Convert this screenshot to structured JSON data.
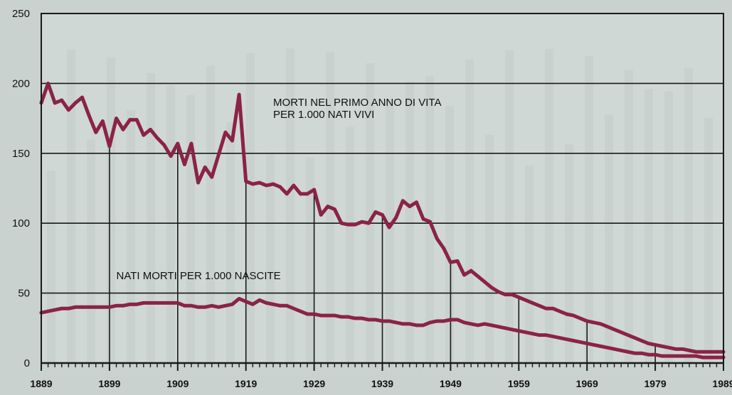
{
  "chart_data": {
    "type": "line",
    "title": "",
    "xlabel": "",
    "ylabel": "",
    "xlim": [
      1889,
      1989
    ],
    "ylim": [
      0,
      250
    ],
    "x_ticks": [
      1889,
      1899,
      1909,
      1919,
      1929,
      1939,
      1949,
      1959,
      1969,
      1979,
      1989
    ],
    "y_ticks": [
      0,
      50,
      100,
      150,
      200,
      250
    ],
    "grid": "horizontal",
    "colors": {
      "line": "#8b2346",
      "grid": "#1a1a1a",
      "background": "#c9d2cf",
      "plot_background": "#cfd8d5",
      "text": "#111111"
    },
    "annotations": [
      {
        "lines": [
          "MORTI NEL PRIMO ANNO DI VITA",
          "PER 1.000 NATI VIVI"
        ],
        "x": 1923,
        "y": 184,
        "series": 0
      },
      {
        "lines": [
          "NATI MORTI PER 1.000 NASCITE"
        ],
        "x": 1900,
        "y": 60,
        "series": 1
      }
    ],
    "series": [
      {
        "name": "MORTI NEL PRIMO ANNO DI VITA PER 1.000 NATI VIVI",
        "x": [
          1889,
          1890,
          1891,
          1892,
          1893,
          1894,
          1895,
          1896,
          1897,
          1898,
          1899,
          1900,
          1901,
          1902,
          1903,
          1904,
          1905,
          1906,
          1907,
          1908,
          1909,
          1910,
          1911,
          1912,
          1913,
          1914,
          1915,
          1916,
          1917,
          1918,
          1919,
          1920,
          1921,
          1922,
          1923,
          1924,
          1925,
          1926,
          1927,
          1928,
          1929,
          1930,
          1931,
          1932,
          1933,
          1934,
          1935,
          1936,
          1937,
          1938,
          1939,
          1940,
          1941,
          1942,
          1943,
          1944,
          1945,
          1946,
          1947,
          1948,
          1949,
          1950,
          1951,
          1952,
          1953,
          1954,
          1955,
          1956,
          1957,
          1958,
          1959,
          1960,
          1961,
          1962,
          1963,
          1964,
          1965,
          1966,
          1967,
          1968,
          1969,
          1970,
          1971,
          1972,
          1973,
          1974,
          1975,
          1976,
          1977,
          1978,
          1979,
          1980,
          1981,
          1982,
          1983,
          1984,
          1985,
          1986,
          1987,
          1988,
          1989
        ],
        "values": [
          186,
          200,
          186,
          188,
          181,
          186,
          190,
          177,
          165,
          173,
          155,
          175,
          167,
          174,
          174,
          163,
          167,
          161,
          156,
          148,
          157,
          142,
          157,
          129,
          140,
          133,
          149,
          165,
          159,
          192,
          130,
          128,
          129,
          127,
          128,
          126,
          121,
          127,
          121,
          121,
          124,
          106,
          112,
          110,
          100,
          99,
          99,
          101,
          100,
          108,
          106,
          97,
          104,
          116,
          112,
          115,
          103,
          101,
          89,
          82,
          72,
          73,
          63,
          66,
          62,
          58,
          54,
          51,
          49,
          49,
          47,
          45,
          43,
          41,
          39,
          39,
          37,
          35,
          34,
          32,
          30,
          29,
          28,
          26,
          24,
          22,
          20,
          18,
          16,
          14,
          13,
          12,
          11,
          10,
          10,
          9,
          8,
          8,
          8,
          8,
          8
        ]
      },
      {
        "name": "NATI MORTI PER 1.000 NASCITE",
        "x": [
          1889,
          1890,
          1891,
          1892,
          1893,
          1894,
          1895,
          1896,
          1897,
          1898,
          1899,
          1900,
          1901,
          1902,
          1903,
          1904,
          1905,
          1906,
          1907,
          1908,
          1909,
          1910,
          1911,
          1912,
          1913,
          1914,
          1915,
          1916,
          1917,
          1918,
          1919,
          1920,
          1921,
          1922,
          1923,
          1924,
          1925,
          1926,
          1927,
          1928,
          1929,
          1930,
          1931,
          1932,
          1933,
          1934,
          1935,
          1936,
          1937,
          1938,
          1939,
          1940,
          1941,
          1942,
          1943,
          1944,
          1945,
          1946,
          1947,
          1948,
          1949,
          1950,
          1951,
          1952,
          1953,
          1954,
          1955,
          1956,
          1957,
          1958,
          1959,
          1960,
          1961,
          1962,
          1963,
          1964,
          1965,
          1966,
          1967,
          1968,
          1969,
          1970,
          1971,
          1972,
          1973,
          1974,
          1975,
          1976,
          1977,
          1978,
          1979,
          1980,
          1981,
          1982,
          1983,
          1984,
          1985,
          1986,
          1987,
          1988,
          1989
        ],
        "values": [
          36,
          37,
          38,
          39,
          39,
          40,
          40,
          40,
          40,
          40,
          40,
          41,
          41,
          42,
          42,
          43,
          43,
          43,
          43,
          43,
          43,
          41,
          41,
          40,
          40,
          41,
          40,
          41,
          42,
          46,
          44,
          42,
          45,
          43,
          42,
          41,
          41,
          39,
          37,
          35,
          35,
          34,
          34,
          34,
          33,
          33,
          32,
          32,
          31,
          31,
          30,
          30,
          29,
          28,
          28,
          27,
          27,
          29,
          30,
          30,
          31,
          31,
          29,
          28,
          27,
          28,
          27,
          26,
          25,
          24,
          23,
          22,
          21,
          20,
          20,
          19,
          18,
          17,
          16,
          15,
          14,
          13,
          12,
          11,
          10,
          9,
          8,
          7,
          7,
          6,
          6,
          5,
          5,
          5,
          5,
          5,
          5,
          4,
          4,
          4,
          4
        ]
      }
    ]
  }
}
